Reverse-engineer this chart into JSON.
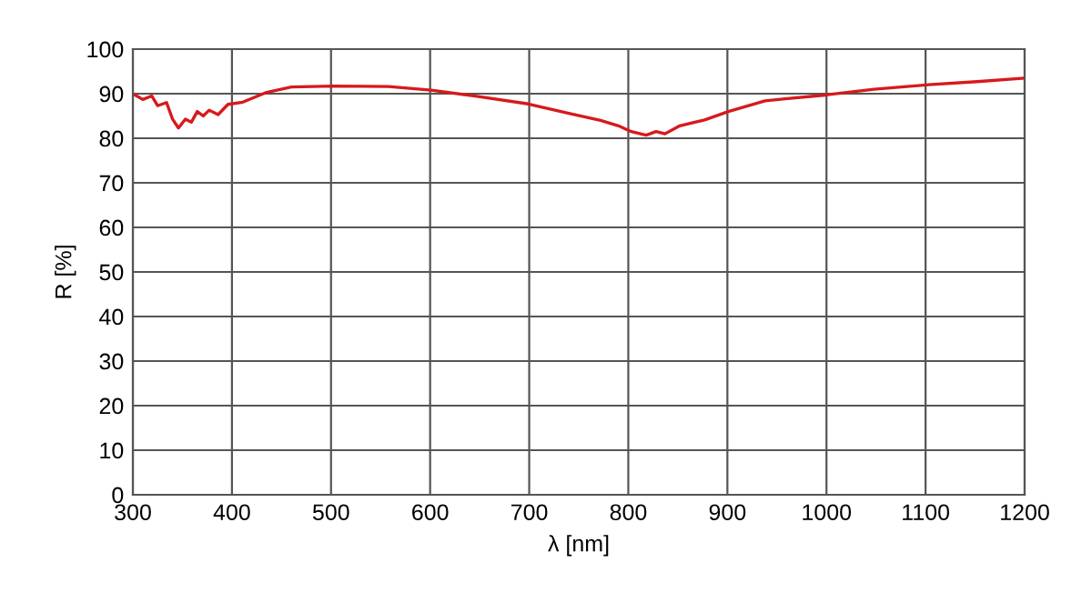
{
  "chart_data": {
    "type": "line",
    "xlabel": "λ [nm]",
    "ylabel": "R [%]",
    "x": [
      300,
      310,
      319,
      325,
      334,
      340,
      346,
      353,
      359,
      365,
      371,
      377,
      386,
      396,
      411,
      435,
      460,
      503,
      558,
      601,
      644,
      699,
      742,
      772,
      790,
      803,
      818,
      828,
      837,
      852,
      877,
      901,
      938,
      956,
      999,
      1048,
      1103,
      1152,
      1200
    ],
    "series": [
      {
        "color": "#d7191c",
        "values": [
          90.0,
          88.7,
          89.5,
          87.3,
          88.0,
          84.3,
          82.3,
          84.3,
          83.6,
          86.0,
          85.0,
          86.3,
          85.3,
          87.6,
          88.1,
          90.3,
          91.5,
          91.7,
          91.6,
          90.8,
          89.5,
          87.7,
          85.5,
          84.0,
          82.8,
          81.5,
          80.7,
          81.5,
          81.0,
          82.8,
          84.1,
          86.0,
          88.4,
          88.8,
          89.7,
          91.0,
          92.0,
          92.7,
          93.5
        ]
      }
    ],
    "xlim": [
      300,
      1200
    ],
    "ylim": [
      0,
      100
    ],
    "xticks": [
      300,
      400,
      500,
      600,
      700,
      800,
      900,
      1000,
      1100,
      1200
    ],
    "yticks": [
      0,
      10,
      20,
      30,
      40,
      50,
      60,
      70,
      80,
      90,
      100
    ],
    "grid": true,
    "legend": false,
    "marker": "none",
    "line_style": "solid"
  }
}
